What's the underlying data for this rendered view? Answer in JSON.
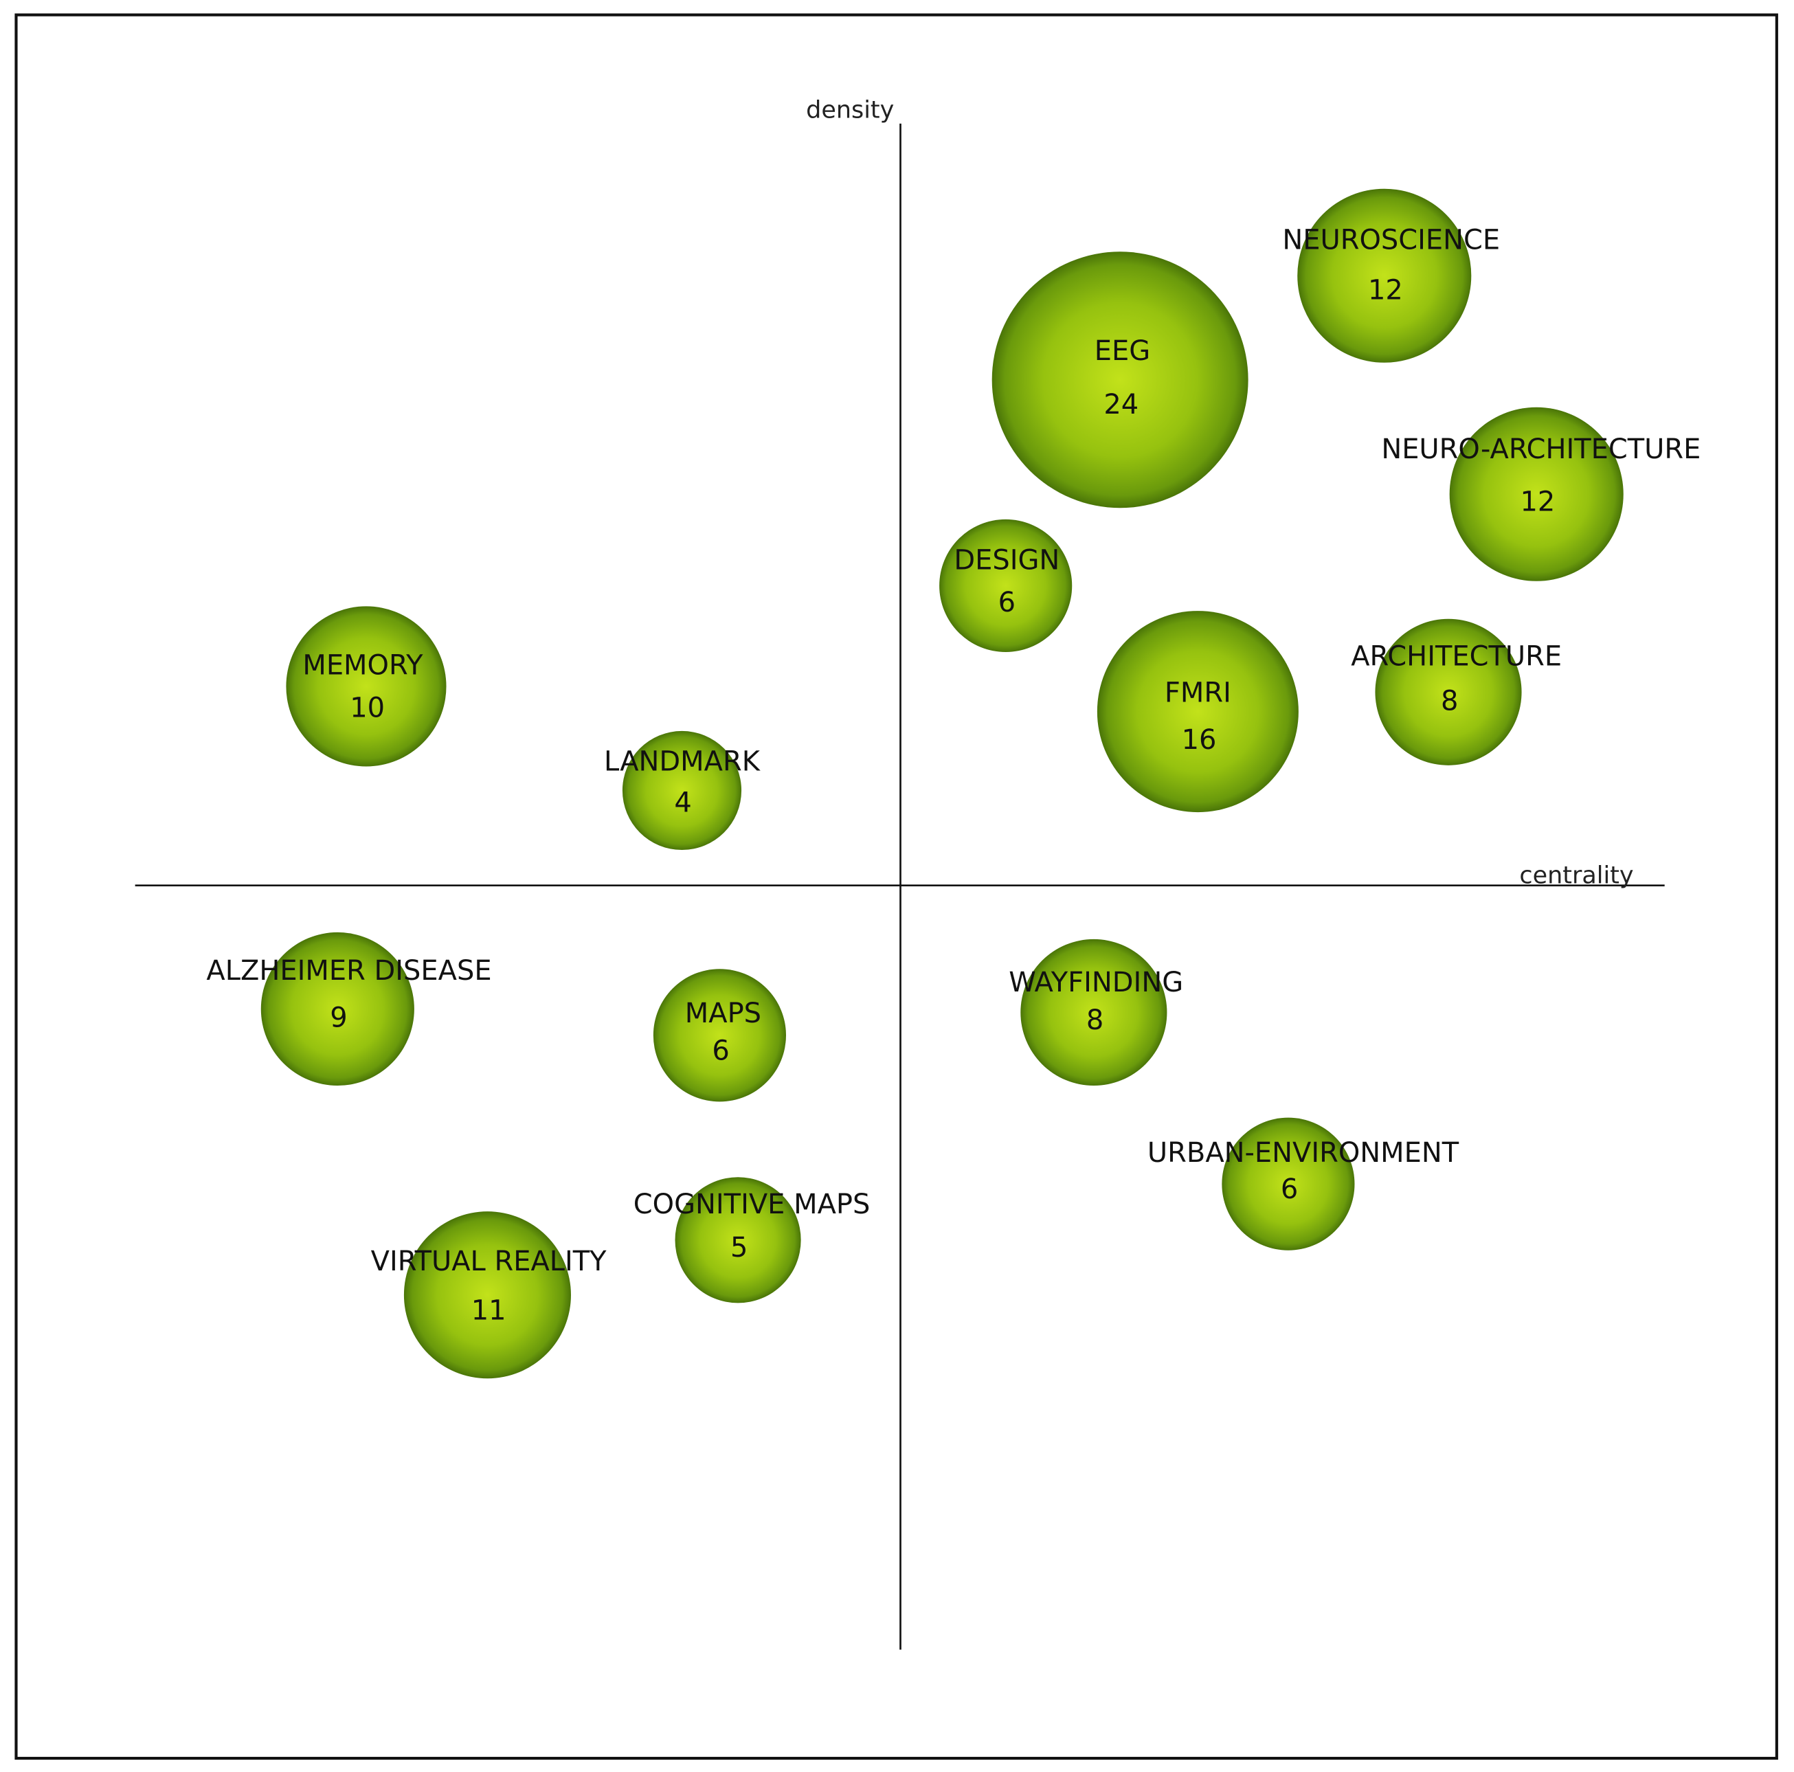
{
  "chart_data": {
    "type": "bubble",
    "x_label": "centrality",
    "y_label": "density",
    "categories": [
      "NEUROSCIENCE",
      "EEG",
      "NEURO-ARCHITECTURE",
      "DESIGN",
      "FMRI",
      "ARCHITECTURE",
      "MEMORY",
      "LANDMARK",
      "ALZHEIMER DISEASE",
      "MAPS",
      "WAYFINDING",
      "URBAN-ENVIRONMENT",
      "COGNITIVE MAPS",
      "VIRTUAL REALITY"
    ],
    "values": [
      12,
      24,
      12,
      6,
      16,
      8,
      10,
      4,
      9,
      6,
      8,
      6,
      5,
      11
    ],
    "color": "#8fbf0c"
  }
}
